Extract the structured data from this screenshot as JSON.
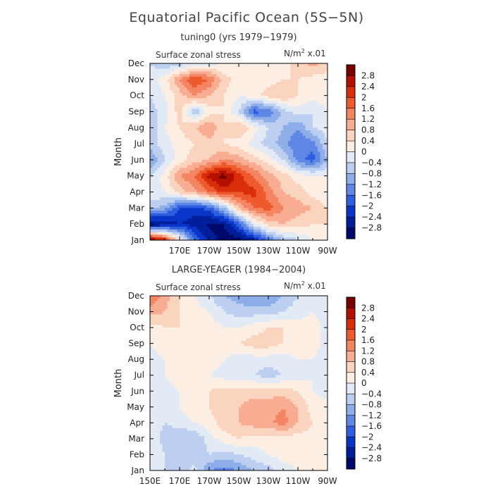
{
  "figure": {
    "title": "Equatorial Pacific Ocean (5S−5N)"
  },
  "colorbar": {
    "levels": [
      "2.8",
      "2.4",
      "2",
      "1.6",
      "1.2",
      "0.8",
      "0.4",
      "0",
      "−0.4",
      "−0.8",
      "−1.2",
      "−1.6",
      "−2",
      "−2.4",
      "−2.8"
    ],
    "colors": [
      "#7a0000",
      "#b31000",
      "#d92e0a",
      "#ee5a2e",
      "#f48563",
      "#f8ad92",
      "#fbd4bf",
      "#fdeee4",
      "#e2eaf6",
      "#bccff0",
      "#8eaeea",
      "#5f88e6",
      "#2f5fe0",
      "#0a35c8",
      "#001e9a",
      "#00086b"
    ]
  },
  "chart_data": [
    {
      "type": "heatmap",
      "title": "tuning0 (yrs 1979−1979)",
      "variable": "Surface zonal stress",
      "units_label": "N/m",
      "units_sup": "2",
      "units_scale": "x.01",
      "ylabel": "Month",
      "y_ticks": [
        "Jan",
        "Feb",
        "Mar",
        "Apr",
        "May",
        "Jun",
        "Jul",
        "Aug",
        "Sep",
        "Oct",
        "Nov",
        "Dec"
      ],
      "x_ticks": [
        "170E",
        "170W",
        "150W",
        "130W",
        "110W",
        "90W"
      ],
      "x_tick_lons": [
        170,
        190,
        210,
        230,
        250,
        270
      ],
      "xlim_lon": [
        150,
        270
      ],
      "grid_lon": [
        150,
        160,
        170,
        180,
        190,
        200,
        210,
        220,
        230,
        240,
        250,
        260,
        270
      ],
      "values": [
        [
          3.2,
          2.4,
          0.2,
          -1.6,
          -2.6,
          -3.0,
          -3.0,
          -2.6,
          -1.6,
          -0.8,
          -0.4,
          0.0,
          0.2
        ],
        [
          -3.0,
          -2.8,
          -2.4,
          -2.6,
          -2.9,
          -2.8,
          -1.8,
          -0.2,
          0.6,
          0.8,
          0.6,
          0.4,
          0.4
        ],
        [
          -0.6,
          -1.0,
          -2.0,
          -2.2,
          -1.8,
          -0.8,
          0.8,
          1.6,
          1.8,
          1.2,
          1.0,
          0.8,
          0.4
        ],
        [
          -0.2,
          0.0,
          0.6,
          1.0,
          1.6,
          2.2,
          2.0,
          2.2,
          1.4,
          0.8,
          0.6,
          0.2,
          0.0
        ],
        [
          -0.4,
          0.2,
          1.2,
          1.6,
          2.6,
          3.0,
          2.2,
          1.6,
          1.0,
          0.6,
          0.2,
          0.0,
          0.0
        ],
        [
          -1.2,
          -0.4,
          0.2,
          0.6,
          0.8,
          1.2,
          1.0,
          0.6,
          0.2,
          -0.4,
          -1.4,
          -1.8,
          -0.8
        ],
        [
          -0.6,
          -0.2,
          0.2,
          0.4,
          0.6,
          0.4,
          0.2,
          -0.2,
          -0.6,
          -1.0,
          -1.6,
          -1.4,
          -0.4
        ],
        [
          -0.8,
          0.0,
          0.4,
          0.8,
          1.2,
          0.4,
          0.8,
          0.2,
          -0.4,
          -0.8,
          -1.2,
          -0.4,
          -0.2
        ],
        [
          -0.6,
          -0.2,
          0.6,
          -0.8,
          0.2,
          0.4,
          -0.4,
          -1.8,
          -1.6,
          -0.6,
          -0.2,
          -0.4,
          0.0
        ],
        [
          -0.4,
          0.0,
          0.6,
          1.2,
          0.8,
          0.4,
          0.0,
          0.2,
          0.6,
          0.8,
          0.4,
          0.2,
          0.2
        ],
        [
          -0.2,
          0.2,
          1.2,
          2.0,
          1.6,
          0.6,
          0.2,
          0.2,
          0.2,
          0.4,
          0.4,
          0.2,
          0.2
        ],
        [
          -0.4,
          -0.8,
          -0.6,
          -0.4,
          -0.2,
          0.0,
          0.2,
          0.4,
          0.2,
          0.2,
          0.6,
          1.0,
          0.6
        ]
      ]
    },
    {
      "type": "heatmap",
      "title": "LARGE-YEAGER (1984−2004)",
      "variable": "Surface zonal stress",
      "units_label": "N/m",
      "units_sup": "2",
      "units_scale": "x.01",
      "ylabel": "Month",
      "y_ticks": [
        "Jan",
        "Feb",
        "Mar",
        "Apr",
        "May",
        "Jun",
        "Jul",
        "Aug",
        "Sep",
        "Oct",
        "Nov",
        "Dec"
      ],
      "x_ticks": [
        "150E",
        "170E",
        "170W",
        "150W",
        "130W",
        "110W",
        "90W"
      ],
      "x_tick_lons": [
        150,
        170,
        190,
        210,
        230,
        250,
        270
      ],
      "xlim_lon": [
        150,
        270
      ],
      "grid_lon": [
        150,
        160,
        170,
        180,
        190,
        200,
        210,
        220,
        230,
        240,
        250,
        260,
        270
      ],
      "values": [
        [
          -0.2,
          -0.4,
          -0.6,
          -0.2,
          -1.2,
          -1.4,
          -1.2,
          -0.8,
          -0.6,
          -0.2,
          0.0,
          0.2,
          0.2
        ],
        [
          0.0,
          -0.4,
          -0.8,
          -0.8,
          -0.4,
          -0.6,
          -0.4,
          -0.2,
          0.0,
          0.2,
          0.2,
          0.2,
          0.2
        ],
        [
          0.0,
          -0.6,
          -0.8,
          -0.8,
          -0.2,
          0.2,
          0.4,
          0.2,
          0.2,
          0.2,
          0.2,
          0.2,
          0.2
        ],
        [
          -0.2,
          -0.4,
          -0.2,
          0.0,
          0.2,
          0.6,
          0.8,
          1.0,
          1.1,
          1.4,
          0.8,
          0.4,
          0.2
        ],
        [
          -0.4,
          -0.2,
          0.0,
          0.2,
          0.4,
          0.8,
          0.8,
          1.0,
          1.0,
          1.2,
          0.8,
          0.2,
          0.2
        ],
        [
          -0.4,
          -0.2,
          0.0,
          0.2,
          0.4,
          0.6,
          0.6,
          0.6,
          0.6,
          0.6,
          0.4,
          0.0,
          -0.2
        ],
        [
          -0.2,
          0.0,
          0.2,
          0.2,
          0.0,
          -0.2,
          -0.4,
          -0.4,
          -0.6,
          -0.4,
          -0.2,
          0.0,
          -0.2
        ],
        [
          -0.2,
          0.0,
          0.2,
          0.4,
          0.2,
          0.0,
          -0.2,
          -0.2,
          -0.2,
          -0.2,
          0.0,
          0.0,
          -0.2
        ],
        [
          0.0,
          0.2,
          0.2,
          0.4,
          0.2,
          0.2,
          0.4,
          0.6,
          0.6,
          0.4,
          0.2,
          0.2,
          -0.2
        ],
        [
          0.2,
          0.4,
          0.4,
          0.4,
          0.2,
          0.0,
          0.0,
          0.2,
          0.4,
          0.4,
          0.2,
          0.2,
          -0.2
        ],
        [
          1.0,
          0.8,
          0.4,
          0.2,
          0.0,
          -0.4,
          -0.6,
          -0.6,
          -0.6,
          -0.4,
          -0.2,
          0.0,
          -0.2
        ],
        [
          1.6,
          1.0,
          0.4,
          0.0,
          -0.4,
          -0.8,
          -1.0,
          -1.2,
          -1.2,
          -0.8,
          -0.4,
          0.0,
          -0.2
        ]
      ]
    }
  ]
}
